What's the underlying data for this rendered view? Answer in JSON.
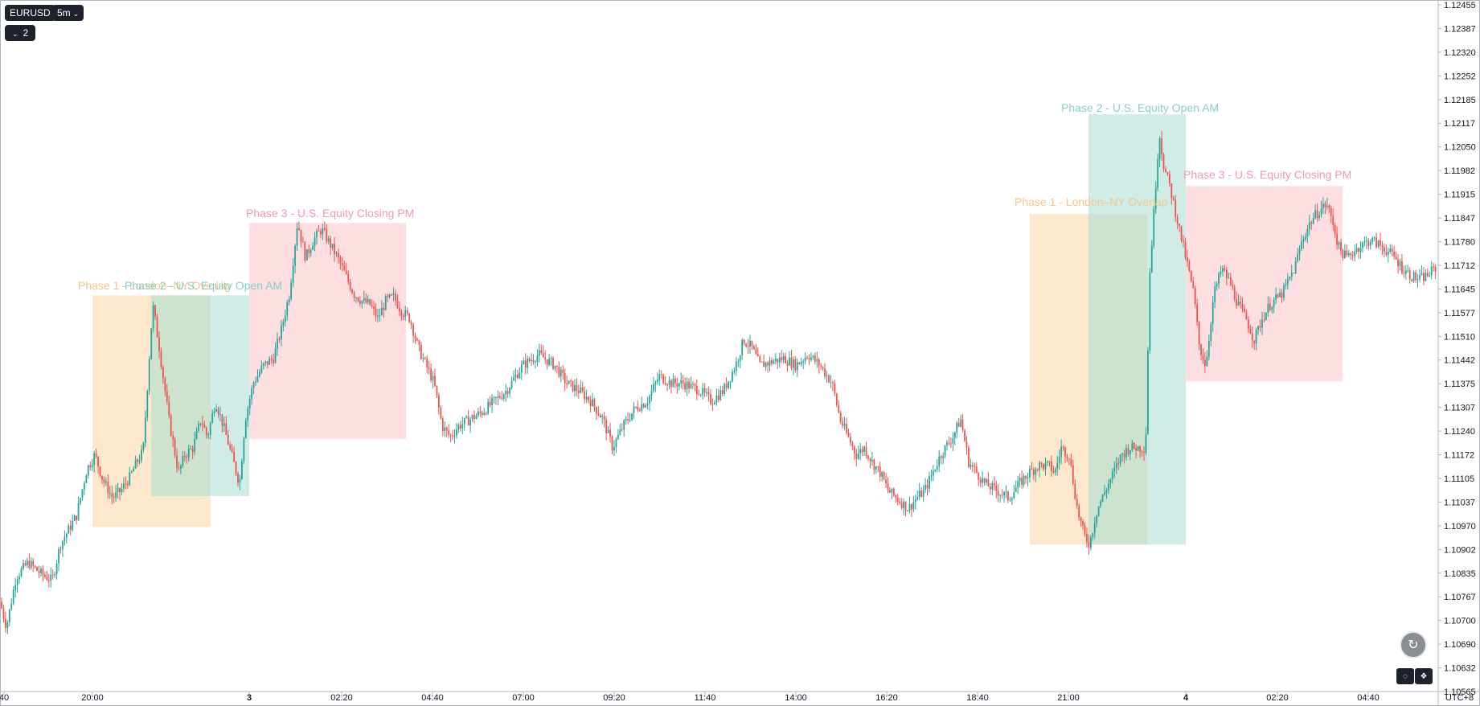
{
  "header": {
    "symbol": "EURUSD",
    "interval": "5m",
    "indicator_count": "2"
  },
  "footer": {
    "timezone": "UTC+8"
  },
  "colors": {
    "up": "#26a69a",
    "down": "#ef5350",
    "phase1": "#fbd6a6",
    "phase2": "#a8dcd2",
    "phase3": "#fbc5cb",
    "phase1_text": "#f5c78a",
    "phase2_text": "#86cfc3",
    "phase3_text": "#f29aa6"
  },
  "chart_data": {
    "type": "candlestick",
    "symbol": "EURUSD",
    "interval": "5m",
    "ylim": [
      1.1054,
      1.1246
    ],
    "y_ticks": [
      "1.12455",
      "1.12387",
      "1.12320",
      "1.12252",
      "1.12185",
      "1.12117",
      "1.12050",
      "1.11982",
      "1.11915",
      "1.11847",
      "1.11780",
      "1.11712",
      "1.11645",
      "1.11577",
      "1.11510",
      "1.11442",
      "1.11375",
      "1.11307",
      "1.11240",
      "1.11172",
      "1.11105",
      "1.11037",
      "1.10970",
      "1.10902",
      "1.10835",
      "1.10767",
      "1.10700",
      "1.10690",
      "1.10632",
      "1.10565"
    ],
    "x_ticks": [
      "40",
      "20:00",
      "3",
      "02:20",
      "04:40",
      "07:00",
      "09:20",
      "11:40",
      "14:00",
      "16:20",
      "18:40",
      "21:00",
      "4",
      "02:20",
      "04:40"
    ],
    "x_tick_bold": [
      false,
      false,
      true,
      false,
      false,
      false,
      false,
      false,
      false,
      false,
      false,
      false,
      true,
      false,
      false
    ],
    "x_tick_pos": [
      5,
      115,
      310,
      425,
      538,
      651,
      764,
      877,
      990,
      1103,
      1216,
      1329,
      1475,
      1589,
      1702
    ],
    "path": [
      [
        0,
        1.1079
      ],
      [
        8,
        1.1072
      ],
      [
        20,
        1.1086
      ],
      [
        35,
        1.109
      ],
      [
        50,
        1.1087
      ],
      [
        65,
        1.1085
      ],
      [
        75,
        1.1095
      ],
      [
        95,
        1.1103
      ],
      [
        108,
        1.1116
      ],
      [
        118,
        1.112
      ],
      [
        128,
        1.1113
      ],
      [
        140,
        1.1108
      ],
      [
        150,
        1.111
      ],
      [
        162,
        1.1114
      ],
      [
        170,
        1.1118
      ],
      [
        178,
        1.1121
      ],
      [
        190,
        1.1162
      ],
      [
        198,
        1.115
      ],
      [
        210,
        1.113
      ],
      [
        222,
        1.1115
      ],
      [
        230,
        1.112
      ],
      [
        240,
        1.1122
      ],
      [
        250,
        1.113
      ],
      [
        258,
        1.1125
      ],
      [
        268,
        1.1135
      ],
      [
        278,
        1.1128
      ],
      [
        288,
        1.112
      ],
      [
        298,
        1.1112
      ],
      [
        305,
        1.113
      ],
      [
        315,
        1.114
      ],
      [
        328,
        1.1145
      ],
      [
        340,
        1.1147
      ],
      [
        350,
        1.1155
      ],
      [
        360,
        1.1165
      ],
      [
        370,
        1.1185
      ],
      [
        380,
        1.1175
      ],
      [
        390,
        1.118
      ],
      [
        400,
        1.1183
      ],
      [
        410,
        1.1179
      ],
      [
        420,
        1.1175
      ],
      [
        430,
        1.117
      ],
      [
        440,
        1.1165
      ],
      [
        450,
        1.1163
      ],
      [
        460,
        1.1162
      ],
      [
        470,
        1.1158
      ],
      [
        480,
        1.1163
      ],
      [
        490,
        1.1164
      ],
      [
        500,
        1.116
      ],
      [
        510,
        1.1158
      ],
      [
        520,
        1.115
      ],
      [
        530,
        1.1145
      ],
      [
        540,
        1.114
      ],
      [
        550,
        1.1128
      ],
      [
        560,
        1.1125
      ],
      [
        570,
        1.1128
      ],
      [
        585,
        1.113
      ],
      [
        600,
        1.1132
      ],
      [
        615,
        1.1135
      ],
      [
        630,
        1.1138
      ],
      [
        650,
        1.1145
      ],
      [
        670,
        1.1148
      ],
      [
        690,
        1.1145
      ],
      [
        705,
        1.114
      ],
      [
        720,
        1.1138
      ],
      [
        735,
        1.1135
      ],
      [
        750,
        1.113
      ],
      [
        762,
        1.1122
      ],
      [
        775,
        1.1128
      ],
      [
        790,
        1.1133
      ],
      [
        805,
        1.1135
      ],
      [
        820,
        1.1142
      ],
      [
        835,
        1.114
      ],
      [
        850,
        1.114
      ],
      [
        870,
        1.1138
      ],
      [
        885,
        1.1135
      ],
      [
        900,
        1.1138
      ],
      [
        915,
        1.1145
      ],
      [
        925,
        1.1152
      ],
      [
        935,
        1.115
      ],
      [
        945,
        1.1145
      ],
      [
        960,
        1.1146
      ],
      [
        975,
        1.1147
      ],
      [
        990,
        1.1145
      ],
      [
        1005,
        1.1148
      ],
      [
        1020,
        1.1145
      ],
      [
        1035,
        1.114
      ],
      [
        1045,
        1.113
      ],
      [
        1055,
        1.1125
      ],
      [
        1065,
        1.112
      ],
      [
        1075,
        1.1122
      ],
      [
        1085,
        1.1118
      ],
      [
        1095,
        1.1115
      ],
      [
        1105,
        1.111
      ],
      [
        1115,
        1.1108
      ],
      [
        1130,
        1.1105
      ],
      [
        1140,
        1.1108
      ],
      [
        1150,
        1.111
      ],
      [
        1160,
        1.1115
      ],
      [
        1170,
        1.112
      ],
      [
        1185,
        1.1125
      ],
      [
        1195,
        1.113
      ],
      [
        1205,
        1.1118
      ],
      [
        1215,
        1.1115
      ],
      [
        1225,
        1.1112
      ],
      [
        1240,
        1.111
      ],
      [
        1255,
        1.1108
      ],
      [
        1268,
        1.1112
      ],
      [
        1280,
        1.1115
      ],
      [
        1292,
        1.1117
      ],
      [
        1305,
        1.1117
      ],
      [
        1312,
        1.1115
      ],
      [
        1320,
        1.1122
      ],
      [
        1330,
        1.112
      ],
      [
        1340,
        1.1105
      ],
      [
        1348,
        1.1098
      ],
      [
        1355,
        1.1095
      ],
      [
        1365,
        1.1105
      ],
      [
        1375,
        1.111
      ],
      [
        1385,
        1.1115
      ],
      [
        1395,
        1.112
      ],
      [
        1405,
        1.1122
      ],
      [
        1415,
        1.1122
      ],
      [
        1425,
        1.1122
      ],
      [
        1430,
        1.117
      ],
      [
        1436,
        1.119
      ],
      [
        1442,
        1.121
      ],
      [
        1448,
        1.12
      ],
      [
        1455,
        1.1195
      ],
      [
        1465,
        1.1185
      ],
      [
        1475,
        1.1175
      ],
      [
        1485,
        1.1165
      ],
      [
        1492,
        1.115
      ],
      [
        1500,
        1.1145
      ],
      [
        1510,
        1.1165
      ],
      [
        1520,
        1.1172
      ],
      [
        1530,
        1.1168
      ],
      [
        1540,
        1.1162
      ],
      [
        1550,
        1.1158
      ],
      [
        1560,
        1.1152
      ],
      [
        1570,
        1.1158
      ],
      [
        1580,
        1.1162
      ],
      [
        1595,
        1.1165
      ],
      [
        1610,
        1.1172
      ],
      [
        1620,
        1.118
      ],
      [
        1630,
        1.1185
      ],
      [
        1640,
        1.1188
      ],
      [
        1650,
        1.119
      ],
      [
        1658,
        1.1185
      ],
      [
        1665,
        1.1178
      ],
      [
        1675,
        1.1175
      ],
      [
        1690,
        1.1178
      ],
      [
        1705,
        1.118
      ],
      [
        1720,
        1.1178
      ],
      [
        1735,
        1.1175
      ],
      [
        1745,
        1.1172
      ],
      [
        1755,
        1.117
      ],
      [
        1765,
        1.1169
      ],
      [
        1775,
        1.117
      ],
      [
        1785,
        1.1172
      ]
    ],
    "zones": [
      {
        "name": "Phase 1 - London–NY Overlap",
        "x0": 115,
        "x1": 262,
        "y_top": 1.11645,
        "y_bottom": 1.10999,
        "fill": "phase1",
        "label_x": 97,
        "label_y": 360
      },
      {
        "name": "Phase 2 - U.S. Equity Open AM",
        "x0": 188,
        "x1": 310,
        "y_top": 1.11645,
        "y_bottom": 1.11085,
        "fill": "phase2",
        "label_x": 155,
        "label_y": 360
      },
      {
        "name": "Phase 3 - U.S. Equity Closing PM",
        "x0": 310,
        "x1": 505,
        "y_top": 1.11847,
        "y_bottom": 1.11245,
        "fill": "phase3",
        "label_x": 306,
        "label_y": 270
      },
      {
        "name": "Phase 1 - London–NY Overlap",
        "x0": 1281,
        "x1": 1427,
        "y_top": 1.11872,
        "y_bottom": 1.1095,
        "fill": "phase1",
        "label_x": 1262,
        "label_y": 256
      },
      {
        "name": "Phase 2 - U.S. Equity Open AM",
        "x0": 1354,
        "x1": 1475,
        "y_top": 1.1215,
        "y_bottom": 1.1095,
        "fill": "phase2",
        "label_x": 1320,
        "label_y": 139
      },
      {
        "name": "Phase 3 - U.S. Equity Closing PM",
        "x0": 1475,
        "x1": 1670,
        "y_top": 1.1195,
        "y_bottom": 1.11405,
        "fill": "phase3",
        "label_x": 1472,
        "label_y": 222
      }
    ]
  }
}
